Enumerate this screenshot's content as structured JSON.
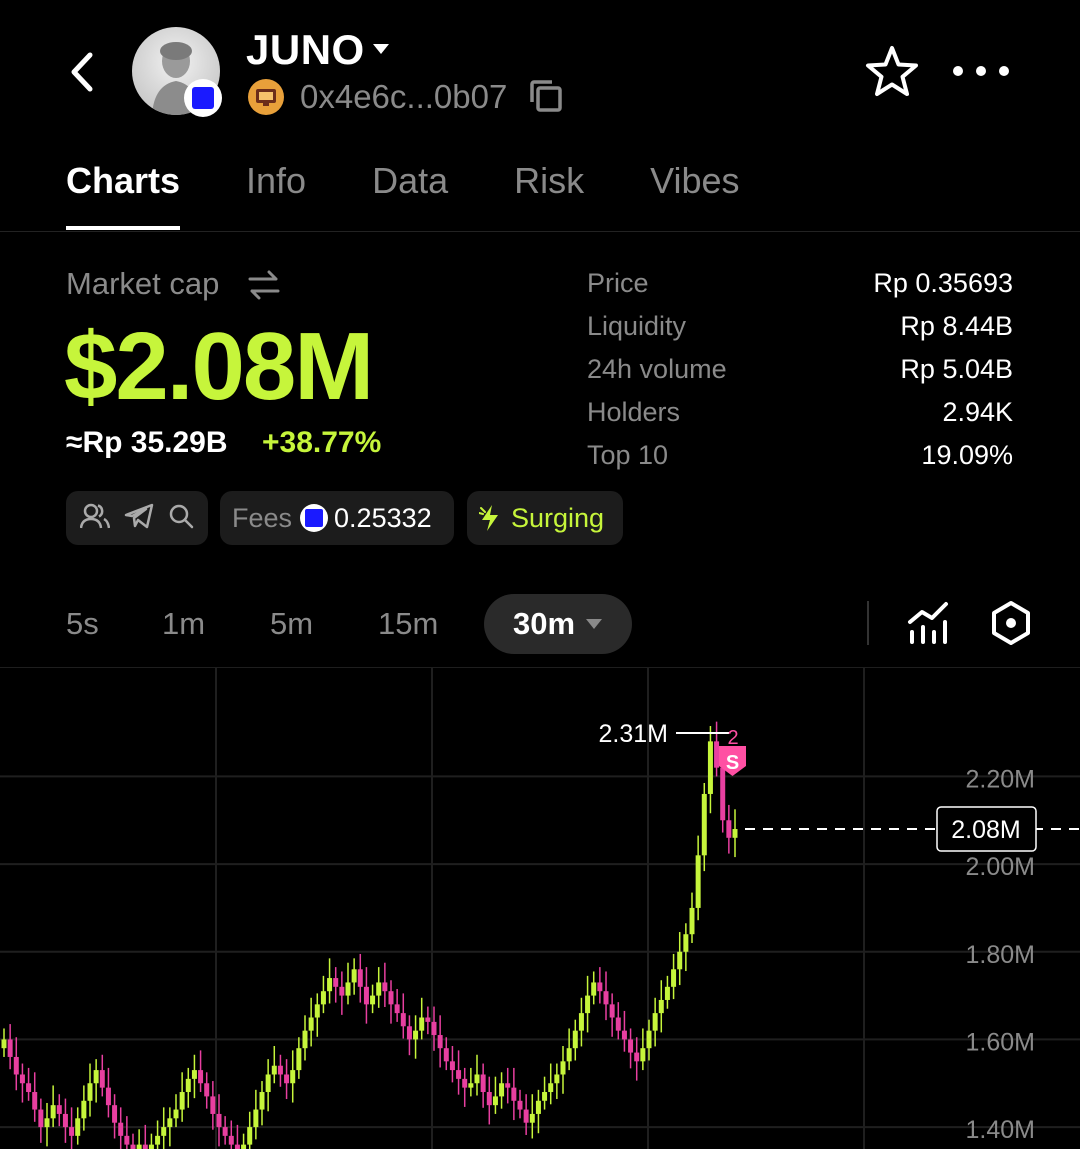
{
  "header": {
    "back_icon": "chevron-left-icon",
    "token_name": "JUNO",
    "address": "0x4e6c...0b07",
    "icons": [
      "chevron-down-icon",
      "copy-icon",
      "star-icon",
      "more-icon"
    ]
  },
  "tabs": [
    {
      "label": "Charts",
      "active": true
    },
    {
      "label": "Info",
      "active": false
    },
    {
      "label": "Data",
      "active": false
    },
    {
      "label": "Risk",
      "active": false
    },
    {
      "label": "Vibes",
      "active": false
    }
  ],
  "market": {
    "label": "Market cap",
    "value": "$2.08M",
    "idr": "≈Rp 35.29B",
    "change": "+38.77%"
  },
  "stats": [
    {
      "key": "Price",
      "value": "Rp 0.35693"
    },
    {
      "key": "Liquidity",
      "value": "Rp 8.44B"
    },
    {
      "key": "24h volume",
      "value": "Rp 5.04B"
    },
    {
      "key": "Holders",
      "value": "2.94K"
    },
    {
      "key": "Top 10",
      "value": "19.09%"
    }
  ],
  "badges": {
    "fees_label": "Fees",
    "fees_value": "0.25332",
    "surge_label": "Surging"
  },
  "timeframes": [
    "5s",
    "1m",
    "5m",
    "15m",
    "30m"
  ],
  "colors": {
    "accent": "#c6f53b",
    "down": "#e83fa0",
    "up": "#c6f53b",
    "marker": "#ff4fa3"
  },
  "chart_data": {
    "type": "candlestick",
    "y_ticks": [
      "2.20M",
      "2.00M",
      "1.80M",
      "1.60M",
      "1.40M"
    ],
    "ylim": [
      1.35,
      2.42
    ],
    "current_value": 2.08,
    "current_label": "2.08M",
    "high_value": 2.31,
    "high_label": "2.31M",
    "marker_label": "S",
    "marker_count": "2",
    "closes": [
      1.6,
      1.56,
      1.52,
      1.5,
      1.48,
      1.44,
      1.4,
      1.42,
      1.45,
      1.43,
      1.4,
      1.38,
      1.42,
      1.46,
      1.5,
      1.53,
      1.49,
      1.45,
      1.41,
      1.38,
      1.36,
      1.35,
      1.36,
      1.34,
      1.36,
      1.38,
      1.4,
      1.42,
      1.44,
      1.48,
      1.51,
      1.53,
      1.5,
      1.47,
      1.43,
      1.4,
      1.38,
      1.36,
      1.34,
      1.36,
      1.4,
      1.44,
      1.48,
      1.52,
      1.54,
      1.52,
      1.5,
      1.53,
      1.58,
      1.62,
      1.65,
      1.68,
      1.71,
      1.74,
      1.72,
      1.7,
      1.73,
      1.76,
      1.72,
      1.68,
      1.7,
      1.73,
      1.71,
      1.68,
      1.66,
      1.63,
      1.6,
      1.62,
      1.65,
      1.64,
      1.61,
      1.58,
      1.55,
      1.53,
      1.51,
      1.49,
      1.5,
      1.52,
      1.48,
      1.45,
      1.47,
      1.5,
      1.49,
      1.46,
      1.44,
      1.41,
      1.43,
      1.46,
      1.48,
      1.5,
      1.52,
      1.55,
      1.58,
      1.62,
      1.66,
      1.7,
      1.73,
      1.71,
      1.68,
      1.65,
      1.62,
      1.6,
      1.57,
      1.55,
      1.58,
      1.62,
      1.66,
      1.69,
      1.72,
      1.76,
      1.8,
      1.84,
      1.9,
      2.02,
      2.16,
      2.28,
      2.22,
      2.1,
      2.06,
      2.08
    ]
  }
}
